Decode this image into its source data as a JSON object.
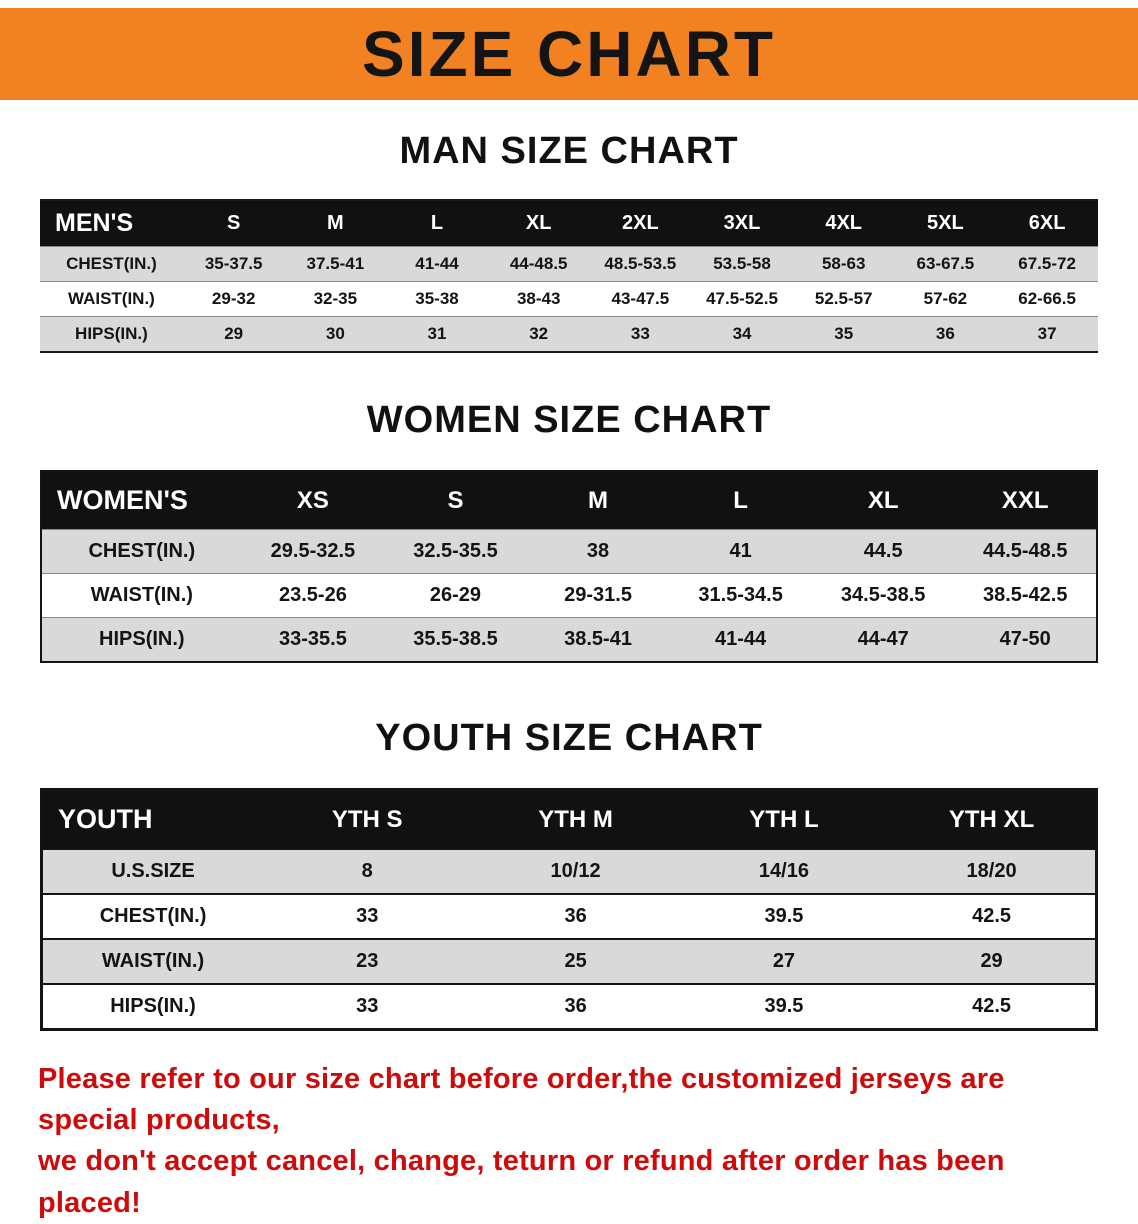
{
  "banner": {
    "title": "SIZE CHART",
    "bg_color": "#f28221"
  },
  "chart_data": [
    {
      "type": "table",
      "title": "MAN SIZE CHART",
      "header": [
        "MEN'S",
        "S",
        "M",
        "L",
        "XL",
        "2XL",
        "3XL",
        "4XL",
        "5XL",
        "6XL"
      ],
      "rows": [
        [
          "CHEST(IN.)",
          "35-37.5",
          "37.5-41",
          "41-44",
          "44-48.5",
          "48.5-53.5",
          "53.5-58",
          "58-63",
          "63-67.5",
          "67.5-72"
        ],
        [
          "WAIST(IN.)",
          "29-32",
          "32-35",
          "35-38",
          "38-43",
          "43-47.5",
          "47.5-52.5",
          "52.5-57",
          "57-62",
          "62-66.5"
        ],
        [
          "HIPS(IN.)",
          "29",
          "30",
          "31",
          "32",
          "33",
          "34",
          "35",
          "36",
          "37"
        ]
      ]
    },
    {
      "type": "table",
      "title": "WOMEN SIZE CHART",
      "header": [
        "WOMEN'S",
        "XS",
        "S",
        "M",
        "L",
        "XL",
        "XXL"
      ],
      "rows": [
        [
          "CHEST(IN.)",
          "29.5-32.5",
          "32.5-35.5",
          "38",
          "41",
          "44.5",
          "44.5-48.5"
        ],
        [
          "WAIST(IN.)",
          "23.5-26",
          "26-29",
          "29-31.5",
          "31.5-34.5",
          "34.5-38.5",
          "38.5-42.5"
        ],
        [
          "HIPS(IN.)",
          "33-35.5",
          "35.5-38.5",
          "38.5-41",
          "41-44",
          "44-47",
          "47-50"
        ]
      ]
    },
    {
      "type": "table",
      "title": "YOUTH SIZE CHART",
      "header": [
        "YOUTH",
        "YTH S",
        "YTH M",
        "YTH L",
        "YTH XL"
      ],
      "rows": [
        [
          "U.S.SIZE",
          "8",
          "10/12",
          "14/16",
          "18/20"
        ],
        [
          "CHEST(IN.)",
          "33",
          "36",
          "39.5",
          "42.5"
        ],
        [
          "WAIST(IN.)",
          "23",
          "25",
          "27",
          "29"
        ],
        [
          "HIPS(IN.)",
          "33",
          "36",
          "39.5",
          "42.5"
        ]
      ]
    }
  ],
  "footer": {
    "line1": "Please refer to our size chart before order,the customized jerseys are special products,",
    "line2": "we don't accept cancel, change, teturn or refund after order has been placed!"
  }
}
